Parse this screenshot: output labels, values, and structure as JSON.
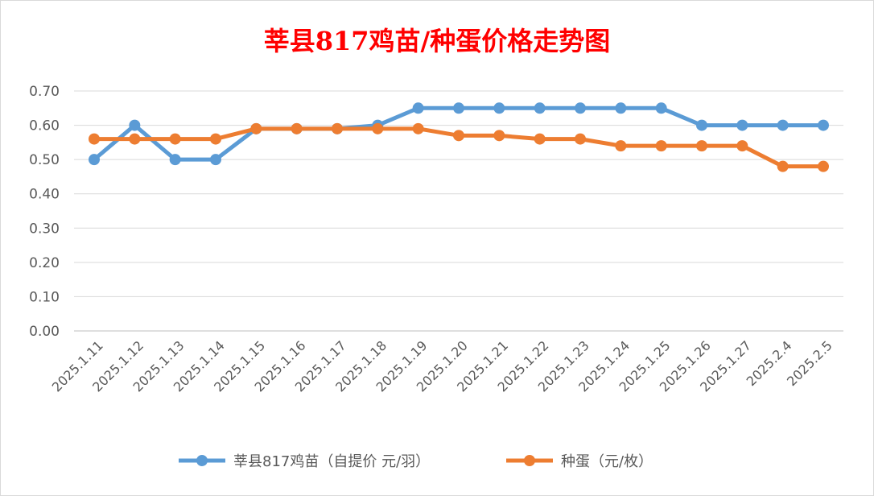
{
  "chart_data": {
    "type": "line",
    "title": "莘县817鸡苗/种蛋价格走势图",
    "categories": [
      "2025.1.11",
      "2025.1.12",
      "2025.1.13",
      "2025.1.14",
      "2025.1.15",
      "2025.1.16",
      "2025.1.17",
      "2025.1.18",
      "2025.1.19",
      "2025.1.20",
      "2025.1.21",
      "2025.1.22",
      "2025.1.23",
      "2025.1.24",
      "2025.1.25",
      "2025.1.26",
      "2025.1.27",
      "2025.2.4",
      "2025.2.5"
    ],
    "series": [
      {
        "name": "莘县817鸡苗（自提价 元/羽）",
        "color": "#5b9bd5",
        "values": [
          0.5,
          0.6,
          0.5,
          0.5,
          0.59,
          0.59,
          0.59,
          0.6,
          0.65,
          0.65,
          0.65,
          0.65,
          0.65,
          0.65,
          0.65,
          0.6,
          0.6,
          0.6,
          0.6
        ]
      },
      {
        "name": "种蛋（元/枚）",
        "color": "#ed7d31",
        "values": [
          0.56,
          0.56,
          0.56,
          0.56,
          0.59,
          0.59,
          0.59,
          0.59,
          0.59,
          0.57,
          0.57,
          0.56,
          0.56,
          0.54,
          0.54,
          0.54,
          0.54,
          0.48,
          0.48
        ]
      }
    ],
    "ylim": [
      0,
      0.7
    ],
    "yticks": [
      "0.00",
      "0.10",
      "0.20",
      "0.30",
      "0.40",
      "0.50",
      "0.60",
      "0.70"
    ],
    "grid": true,
    "legend_position": "bottom",
    "xlabel": "",
    "ylabel": ""
  }
}
